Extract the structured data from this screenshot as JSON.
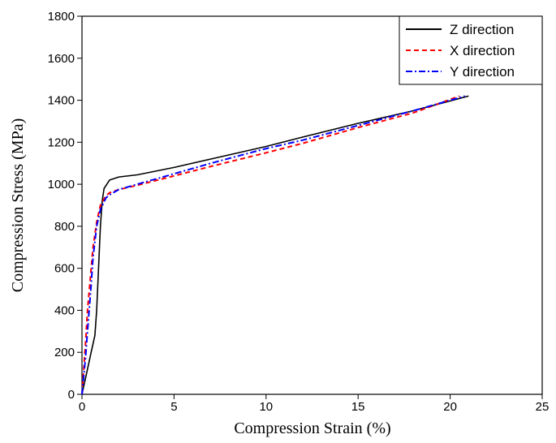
{
  "chart_data": {
    "type": "line",
    "xlabel": "Compression Strain (%)",
    "ylabel": "Compression Stress (MPa)",
    "xlim": [
      0,
      25
    ],
    "xticks": [
      0,
      5,
      10,
      15,
      20,
      25
    ],
    "ylim": [
      0,
      1800
    ],
    "yticks": [
      0,
      200,
      400,
      600,
      800,
      1000,
      1200,
      1400,
      1600,
      1800
    ],
    "legend": "upper right",
    "series": [
      {
        "name": "Z direction",
        "color": "#000000",
        "dash": "solid",
        "x": [
          0,
          0.3,
          0.5,
          0.7,
          0.8,
          0.9,
          1.0,
          1.1,
          1.2,
          1.5,
          2,
          3,
          5,
          7,
          10,
          12,
          15,
          18,
          21
        ],
        "values": [
          0,
          120,
          200,
          280,
          400,
          600,
          800,
          920,
          980,
          1020,
          1035,
          1045,
          1080,
          1120,
          1180,
          1225,
          1290,
          1350,
          1420
        ]
      },
      {
        "name": "X direction",
        "color": "#ff0000",
        "dash": "dashed",
        "x": [
          0,
          0.2,
          0.3,
          0.5,
          0.6,
          0.8,
          1.0,
          1.3,
          1.5,
          2,
          3,
          5,
          7,
          10,
          12,
          15,
          18,
          20.5
        ],
        "values": [
          0,
          250,
          400,
          600,
          700,
          820,
          900,
          945,
          960,
          975,
          995,
          1040,
          1085,
          1150,
          1195,
          1270,
          1340,
          1420
        ]
      },
      {
        "name": "Y direction",
        "color": "#0000ff",
        "dash": "dashdot",
        "x": [
          0,
          0.2,
          0.3,
          0.5,
          0.6,
          0.8,
          1.0,
          1.3,
          1.5,
          2,
          3,
          5,
          7,
          10,
          12,
          15,
          18,
          20.8
        ],
        "values": [
          0,
          180,
          300,
          520,
          650,
          800,
          880,
          935,
          950,
          975,
          1000,
          1050,
          1100,
          1170,
          1210,
          1280,
          1350,
          1420
        ]
      }
    ]
  }
}
